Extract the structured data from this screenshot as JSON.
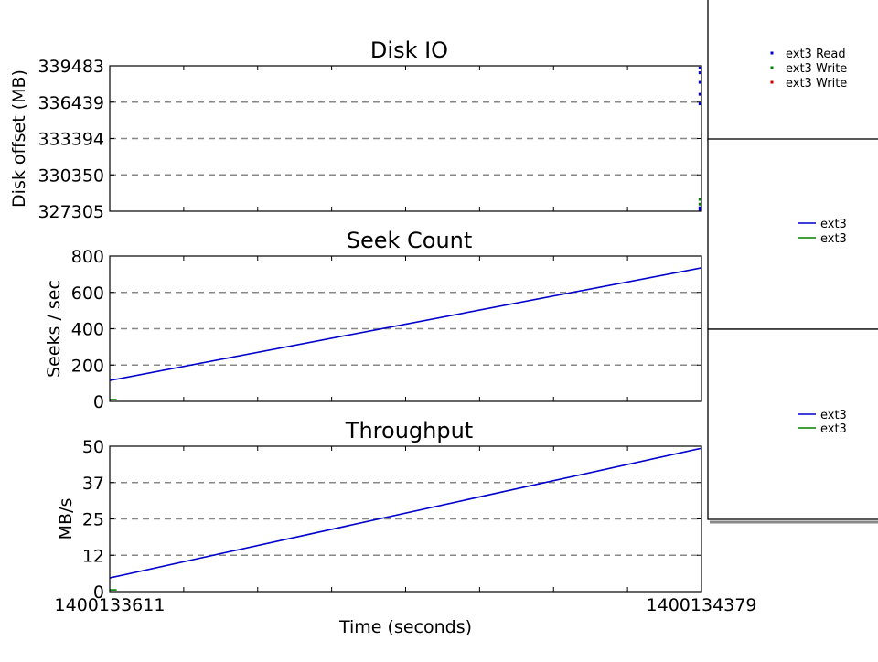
{
  "chart_data": [
    {
      "type": "scatter",
      "title": "Disk IO",
      "ylabel": "Disk offset (MB)",
      "xlim": [
        1400133611,
        1400134379
      ],
      "ylim": [
        327305,
        339483
      ],
      "yticks": [
        "327305",
        "330350",
        "333394",
        "336439",
        "339483"
      ],
      "grid": true,
      "legend_placement": "right (outside)",
      "series": [
        {
          "name": "ext3 Read",
          "color": "#0000cc",
          "x": [
            1400134377,
            1400134377,
            1400134377,
            1400134377,
            1400134377,
            1400134377,
            1400134377
          ],
          "y": [
            339300,
            338900,
            338100,
            337100,
            336300,
            327600,
            327400
          ]
        },
        {
          "name": "ext3 Write",
          "color": "#008000",
          "x": [
            1400134377,
            1400134377
          ],
          "y": [
            328300,
            327900
          ]
        },
        {
          "name": "ext3 Write",
          "color": "#cc0000",
          "x": [],
          "y": []
        }
      ]
    },
    {
      "type": "line",
      "title": "Seek Count",
      "ylabel": "Seeks / sec",
      "xlim": [
        1400133611,
        1400134379
      ],
      "ylim": [
        0,
        800
      ],
      "yticks": [
        "0",
        "200",
        "400",
        "600",
        "800"
      ],
      "grid": true,
      "legend_placement": "right (outside)",
      "series": [
        {
          "name": "ext3",
          "color": "#0000cc",
          "x": [
            1400133611,
            1400134379
          ],
          "y": [
            115,
            735
          ]
        },
        {
          "name": "ext3",
          "color": "#008000",
          "x": [
            1400133611,
            1400133620
          ],
          "y": [
            10,
            10
          ]
        }
      ]
    },
    {
      "type": "line",
      "title": "Throughput",
      "ylabel": "MB/s",
      "xlabel": "Time (seconds)",
      "xlim": [
        1400133611,
        1400134379
      ],
      "xticks": [
        "1400133611",
        "1400134379"
      ],
      "ylim": [
        0,
        50
      ],
      "yticks": [
        "0",
        "12",
        "25",
        "37",
        "50"
      ],
      "grid": true,
      "legend_placement": "right (outside)",
      "series": [
        {
          "name": "ext3",
          "color": "#0000cc",
          "x": [
            1400133611,
            1400134379
          ],
          "y": [
            4.7,
            49.3
          ]
        },
        {
          "name": "ext3",
          "color": "#008000",
          "x": [
            1400133611,
            1400133620
          ],
          "y": [
            0.6,
            0.6
          ]
        }
      ]
    }
  ]
}
